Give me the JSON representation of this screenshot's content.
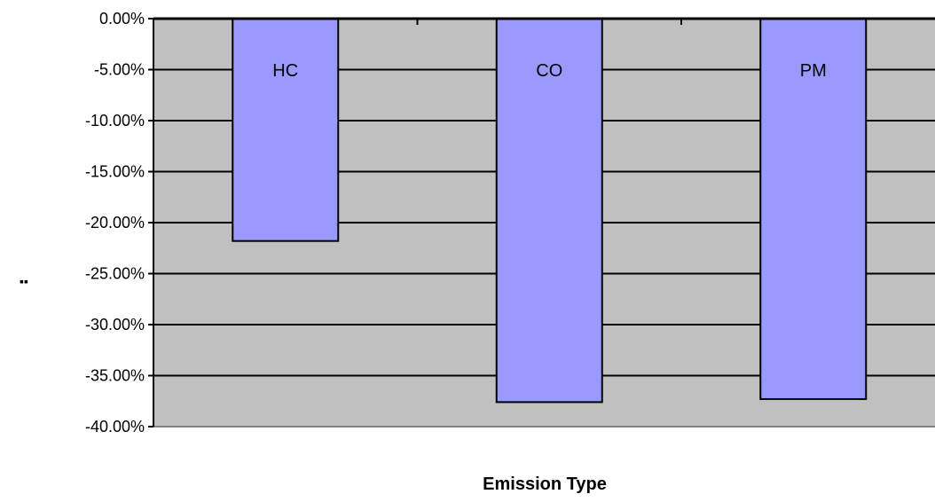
{
  "chart_data": {
    "type": "bar",
    "categories": [
      "HC",
      "CO",
      "PM"
    ],
    "values": [
      -21.8,
      -37.6,
      -37.3
    ],
    "title": "",
    "xlabel": "Emission Type",
    "ylabel": "▪▪",
    "ylim": [
      -40,
      0
    ],
    "ytick_step": 5,
    "ytick_labels": [
      "0.00%",
      "-5.00%",
      "-10.00%",
      "-15.00%",
      "-20.00%",
      "-25.00%",
      "-30.00%",
      "-35.00%",
      "-40.00%"
    ],
    "grid": true,
    "data_labels": "category name inside bar",
    "colors": {
      "bar_fill": "#9999ff",
      "plot_background": "#c0c0c0",
      "grid": "#000000"
    }
  }
}
